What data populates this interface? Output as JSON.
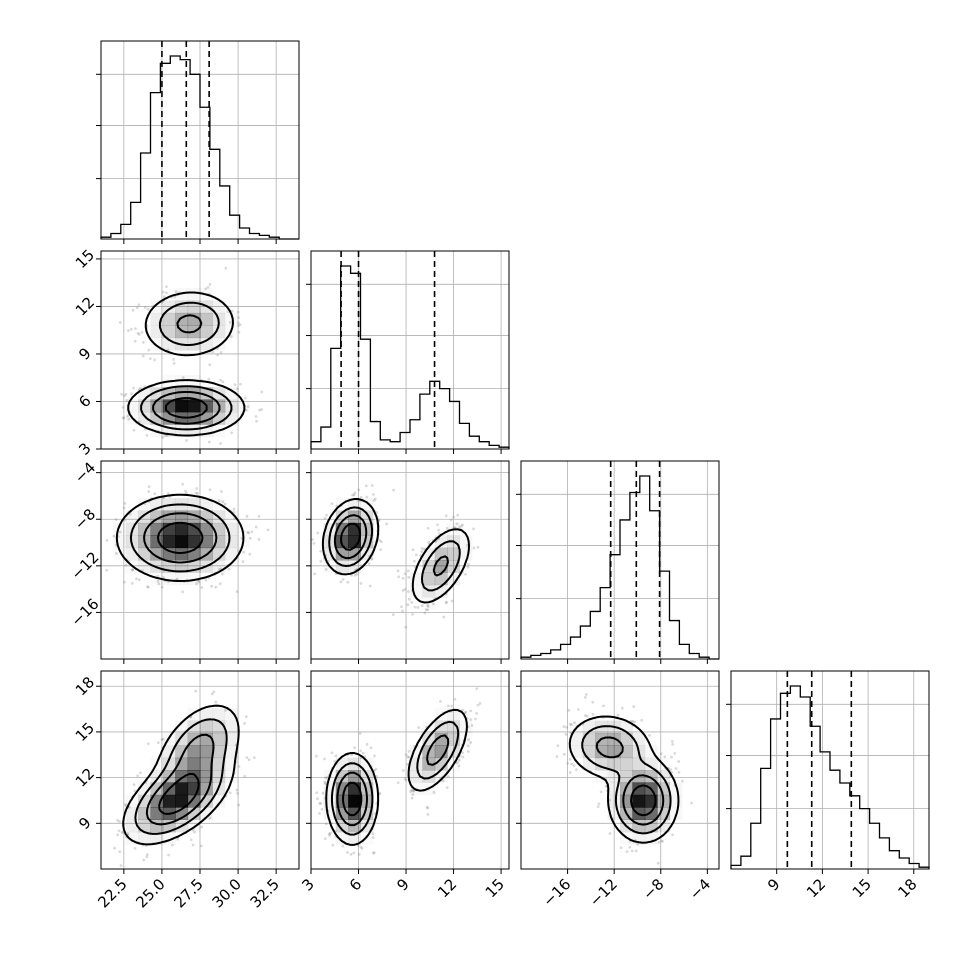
{
  "chart_data": {
    "type": "corner",
    "grid": true,
    "parameters": [
      {
        "id": "p0",
        "range": [
          21,
          34
        ],
        "ticks": [
          22.5,
          25.0,
          27.5,
          30.0,
          32.5
        ],
        "tick_labels": [
          "22.5",
          "25.0",
          "27.5",
          "30.0",
          "32.5"
        ],
        "quantiles": [
          25.0,
          26.6,
          28.1
        ],
        "hist": {
          "edges": [
            21,
            21.65,
            22.3,
            22.95,
            23.6,
            24.25,
            24.9,
            25.55,
            26.2,
            26.85,
            27.5,
            28.15,
            28.8,
            29.45,
            30.1,
            30.75,
            31.4,
            32.05,
            32.7,
            33.35,
            34
          ],
          "counts": [
            0.01,
            0.03,
            0.08,
            0.2,
            0.47,
            0.8,
            0.96,
            1.0,
            0.98,
            0.9,
            0.72,
            0.49,
            0.29,
            0.13,
            0.06,
            0.03,
            0.02,
            0.01,
            0.0,
            0.0
          ]
        }
      },
      {
        "id": "p1",
        "range": [
          3,
          15.5
        ],
        "ticks": [
          3,
          6,
          9,
          12,
          15
        ],
        "tick_labels": [
          "3",
          "6",
          "9",
          "12",
          "15"
        ],
        "quantiles": [
          4.9,
          6.0,
          10.8
        ],
        "hist": {
          "edges": [
            3,
            3.625,
            4.25,
            4.875,
            5.5,
            6.125,
            6.75,
            7.375,
            8,
            8.625,
            9.25,
            9.875,
            10.5,
            11.125,
            11.75,
            12.375,
            13,
            13.625,
            14.25,
            14.875,
            15.5
          ],
          "counts": [
            0.04,
            0.12,
            0.55,
            1.0,
            0.96,
            0.6,
            0.15,
            0.05,
            0.04,
            0.09,
            0.16,
            0.3,
            0.37,
            0.33,
            0.26,
            0.14,
            0.07,
            0.04,
            0.02,
            0.01
          ]
        }
      },
      {
        "id": "p2",
        "range": [
          -20,
          -3
        ],
        "ticks": [
          -16,
          -12,
          -8,
          -4
        ],
        "tick_labels": [
          "−16",
          "−12",
          "−8",
          "−4"
        ],
        "quantiles": [
          -12.3,
          -10.1,
          -8.1
        ],
        "hist": {
          "edges": [
            -20,
            -19.15,
            -18.3,
            -17.45,
            -16.6,
            -15.75,
            -14.9,
            -14.05,
            -13.2,
            -12.35,
            -11.5,
            -10.65,
            -9.8,
            -8.95,
            -8.1,
            -7.25,
            -6.4,
            -5.55,
            -4.7,
            -3.85,
            -3
          ],
          "counts": [
            0.01,
            0.02,
            0.03,
            0.05,
            0.08,
            0.12,
            0.18,
            0.26,
            0.39,
            0.57,
            0.76,
            0.91,
            1.0,
            0.81,
            0.48,
            0.21,
            0.08,
            0.03,
            0.01,
            0.0
          ]
        }
      },
      {
        "id": "p3",
        "range": [
          6,
          19
        ],
        "ticks": [
          9,
          12,
          15,
          18
        ],
        "tick_labels": [
          "9",
          "12",
          "15",
          "18"
        ],
        "quantiles": [
          9.7,
          11.3,
          13.9
        ],
        "hist": {
          "edges": [
            6,
            6.65,
            7.3,
            7.95,
            8.6,
            9.25,
            9.9,
            10.55,
            11.2,
            11.85,
            12.5,
            13.15,
            13.8,
            14.45,
            15.1,
            15.75,
            16.4,
            17.05,
            17.7,
            18.35,
            19
          ],
          "counts": [
            0.02,
            0.07,
            0.25,
            0.55,
            0.82,
            0.96,
            1.0,
            0.94,
            0.78,
            0.64,
            0.54,
            0.47,
            0.4,
            0.33,
            0.25,
            0.17,
            0.1,
            0.06,
            0.03,
            0.01
          ]
        }
      }
    ],
    "joint": [
      {
        "row": 1,
        "col": 0,
        "clusters": [
          {
            "mx": 26.6,
            "my": 5.6,
            "sx": 1.65,
            "sy": 0.75,
            "rho": 0.0,
            "w": 0.64
          },
          {
            "mx": 26.8,
            "my": 10.9,
            "sx": 1.45,
            "sy": 1.0,
            "rho": 0.05,
            "w": 0.36
          }
        ]
      },
      {
        "row": 2,
        "col": 0,
        "clusters": [
          {
            "mx": 26.2,
            "my": -9.6,
            "sx": 1.8,
            "sy": 1.6,
            "rho": 0.0,
            "w": 1.0
          }
        ]
      },
      {
        "row": 2,
        "col": 1,
        "clusters": [
          {
            "mx": 5.5,
            "my": -9.5,
            "sx": 0.75,
            "sy": 1.4,
            "rho": 0.2,
            "w": 0.64
          },
          {
            "mx": 11.2,
            "my": -12.0,
            "sx": 0.9,
            "sy": 1.6,
            "rho": 0.55,
            "w": 0.36
          }
        ]
      },
      {
        "row": 3,
        "col": 0,
        "clusters": [
          {
            "mx": 26.0,
            "my": 10.6,
            "sx": 1.55,
            "sy": 1.3,
            "rho": 0.55,
            "w": 0.64
          },
          {
            "mx": 27.4,
            "my": 13.8,
            "sx": 1.3,
            "sy": 1.45,
            "rho": 0.45,
            "w": 0.36
          }
        ]
      },
      {
        "row": 3,
        "col": 1,
        "clusters": [
          {
            "mx": 5.6,
            "my": 10.6,
            "sx": 0.7,
            "sy": 1.3,
            "rho": 0.0,
            "w": 0.64
          },
          {
            "mx": 11.0,
            "my": 13.8,
            "sx": 0.9,
            "sy": 1.3,
            "rho": 0.6,
            "w": 0.36
          }
        ]
      },
      {
        "row": 3,
        "col": 2,
        "clusters": [
          {
            "mx": -9.5,
            "my": 10.5,
            "sx": 1.3,
            "sy": 1.2,
            "rho": 0.0,
            "w": 0.64
          },
          {
            "mx": -12.4,
            "my": 14.0,
            "sx": 1.7,
            "sy": 1.0,
            "rho": -0.1,
            "w": 0.36
          }
        ]
      }
    ],
    "colors": {
      "contour": "#000000",
      "points": "#7a7a7a",
      "density": "#000000",
      "grid": "#b0b0b0"
    }
  }
}
